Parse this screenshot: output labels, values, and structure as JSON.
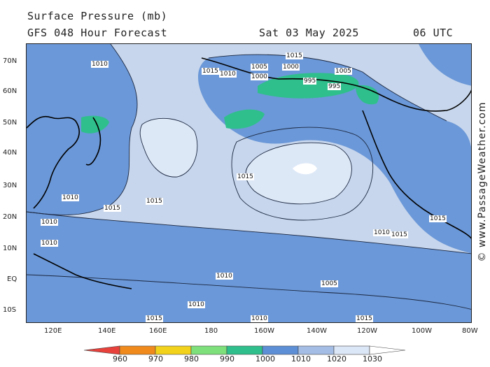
{
  "header": {
    "title": "Surface Pressure (mb)",
    "forecast": "GFS 048 Hour Forecast",
    "date": "Sat 03 May 2025",
    "time": "06 UTC"
  },
  "copyright": "© www.PassageWeather.com",
  "axes": {
    "lat_labels": [
      "70N",
      "60N",
      "50N",
      "40N",
      "30N",
      "20N",
      "10N",
      "EQ",
      "10S"
    ],
    "lon_labels": [
      "120E",
      "140E",
      "160E",
      "180",
      "160W",
      "140W",
      "120W",
      "100W",
      "80W"
    ]
  },
  "legend": {
    "levels": [
      "960",
      "970",
      "980",
      "990",
      "1000",
      "1010",
      "1020",
      "1030"
    ],
    "colors": [
      "#e8413c",
      "#f08a1c",
      "#f3d21b",
      "#7ee07a",
      "#2fbf8c",
      "#5d8fd6",
      "#a4bde4",
      "#dbe6f6",
      "#ffffff"
    ]
  },
  "isobar_labels": [
    {
      "text": "1015"
    },
    {
      "text": "1010"
    },
    {
      "text": "1005"
    },
    {
      "text": "1000"
    },
    {
      "text": "995"
    },
    {
      "text": "1015"
    },
    {
      "text": "1010"
    },
    {
      "text": "1005"
    },
    {
      "text": "1000"
    },
    {
      "text": "995"
    },
    {
      "text": "1015"
    },
    {
      "text": "1010"
    },
    {
      "text": "1015"
    },
    {
      "text": "1010"
    },
    {
      "text": "1015"
    },
    {
      "text": "1010"
    },
    {
      "text": "1015"
    },
    {
      "text": "1010"
    },
    {
      "text": "1005"
    },
    {
      "text": "1015"
    },
    {
      "text": "1010"
    },
    {
      "text": "1015"
    },
    {
      "text": "1010"
    },
    {
      "text": "1015"
    },
    {
      "text": "1010"
    }
  ]
}
